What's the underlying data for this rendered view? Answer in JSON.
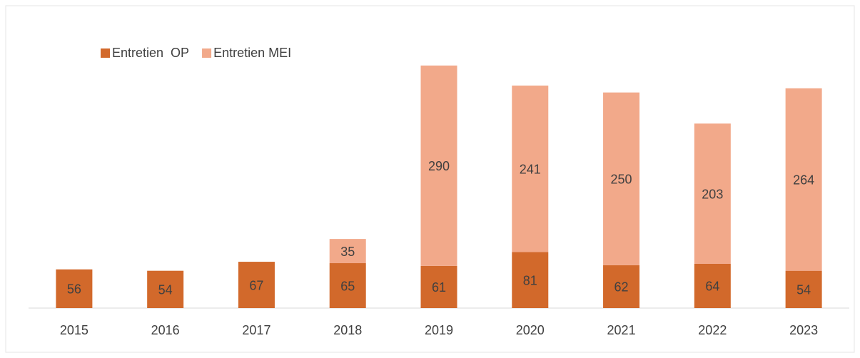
{
  "chart_data": {
    "type": "stacked_bar",
    "categories": [
      "2015",
      "2016",
      "2017",
      "2018",
      "2019",
      "2020",
      "2021",
      "2022",
      "2023"
    ],
    "series": [
      {
        "name": "Entretien  OP",
        "color": "#d2692b",
        "values": [
          56,
          54,
          67,
          65,
          61,
          81,
          62,
          64,
          54
        ]
      },
      {
        "name": "Entretien MEI",
        "color": "#f2a98a",
        "values": [
          null,
          null,
          null,
          35,
          290,
          241,
          250,
          203,
          264
        ]
      }
    ],
    "legend": "top-left"
  }
}
